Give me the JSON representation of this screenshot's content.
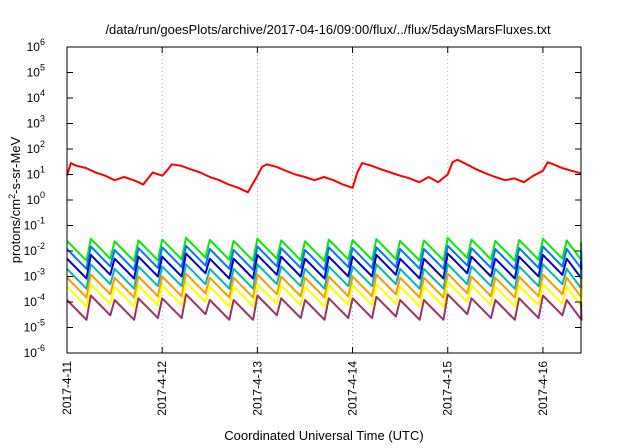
{
  "chart_data": {
    "type": "line",
    "title": "/data/run/goesPlots/archive/2017-04-16/09:00/flux/../flux/5daysMarsFluxes.txt",
    "xlabel": "Coordinated Universal Time (UTC)",
    "ylabel_parts": [
      "protons/cm",
      "2",
      "-s-sr-MeV"
    ],
    "yscale": "log",
    "ylim": [
      1e-06,
      1000000.0
    ],
    "y_ticks": [
      {
        "base": "10",
        "exp": "-6",
        "value": 1e-06
      },
      {
        "base": "10",
        "exp": "-5",
        "value": 1e-05
      },
      {
        "base": "10",
        "exp": "-4",
        "value": 0.0001
      },
      {
        "base": "10",
        "exp": "-3",
        "value": 0.001
      },
      {
        "base": "10",
        "exp": "-2",
        "value": 0.01
      },
      {
        "base": "10",
        "exp": "-1",
        "value": 0.1
      },
      {
        "base": "10",
        "exp": "0",
        "value": 1
      },
      {
        "base": "10",
        "exp": "1",
        "value": 10
      },
      {
        "base": "10",
        "exp": "2",
        "value": 100
      },
      {
        "base": "10",
        "exp": "3",
        "value": 1000
      },
      {
        "base": "10",
        "exp": "4",
        "value": 10000
      },
      {
        "base": "10",
        "exp": "5",
        "value": 100000
      },
      {
        "base": "10",
        "exp": "6",
        "value": 1000000
      }
    ],
    "x_ticks": [
      "2017-4-11",
      "2017-4-12",
      "2017-4-13",
      "2017-4-14",
      "2017-4-15",
      "2017-4-16"
    ],
    "xlim_days": [
      0,
      5.4
    ],
    "grid": true,
    "series": [
      {
        "color": "#ff0000",
        "x": [
          0,
          0.04,
          0.1,
          0.2,
          0.3,
          0.4,
          0.5,
          0.6,
          0.7,
          0.75,
          0.8,
          0.9,
          1.0,
          1.05,
          1.1,
          1.2,
          1.3,
          1.4,
          1.5,
          1.6,
          1.7,
          1.8,
          1.9,
          2.0,
          2.05,
          2.1,
          2.2,
          2.3,
          2.4,
          2.5,
          2.6,
          2.7,
          2.8,
          2.9,
          3.0,
          3.05,
          3.1,
          3.2,
          3.3,
          3.4,
          3.5,
          3.6,
          3.7,
          3.8,
          3.9,
          4.0,
          4.05,
          4.1,
          4.2,
          4.3,
          4.4,
          4.5,
          4.6,
          4.7,
          4.8,
          4.9,
          5.0,
          5.05,
          5.1,
          5.2,
          5.3,
          5.4
        ],
        "values": [
          9,
          28,
          22,
          18,
          12,
          9,
          6,
          8,
          6,
          5,
          4,
          12,
          9,
          14,
          25,
          22,
          16,
          12,
          8,
          6,
          4,
          3,
          2,
          9,
          20,
          25,
          20,
          14,
          10,
          8,
          6,
          8,
          6,
          4,
          3,
          12,
          28,
          22,
          16,
          12,
          9,
          7,
          5,
          8,
          5,
          10,
          30,
          38,
          25,
          16,
          11,
          8,
          6,
          7,
          5,
          9,
          14,
          30,
          26,
          18,
          14,
          11
        ]
      },
      {
        "color": "#00ee00",
        "x": [
          0,
          0.25,
          0.5,
          0.75,
          1.0,
          1.25,
          1.5,
          1.75,
          2.0,
          2.25,
          2.5,
          2.75,
          3.0,
          3.25,
          3.5,
          3.75,
          4.0,
          4.25,
          4.5,
          4.75,
          5.0,
          5.25,
          5.4
        ],
        "values": [
          0.025,
          0.03,
          0.024,
          0.026,
          0.028,
          0.033,
          0.027,
          0.025,
          0.03,
          0.026,
          0.024,
          0.028,
          0.027,
          0.029,
          0.025,
          0.026,
          0.032,
          0.028,
          0.025,
          0.027,
          0.03,
          0.026,
          0.022
        ]
      },
      {
        "color": "#0077ff",
        "x": [
          0,
          0.25,
          0.5,
          0.75,
          1.0,
          1.25,
          1.5,
          1.75,
          2.0,
          2.25,
          2.5,
          2.75,
          3.0,
          3.25,
          3.5,
          3.75,
          4.0,
          4.25,
          4.5,
          4.75,
          5.0,
          5.25,
          5.4
        ],
        "values": [
          0.012,
          0.015,
          0.011,
          0.013,
          0.014,
          0.016,
          0.012,
          0.011,
          0.015,
          0.013,
          0.011,
          0.014,
          0.013,
          0.014,
          0.012,
          0.012,
          0.016,
          0.013,
          0.012,
          0.013,
          0.015,
          0.012,
          0.01
        ]
      },
      {
        "color": "#0000cc",
        "x": [
          0,
          0.25,
          0.5,
          0.75,
          1.0,
          1.25,
          1.5,
          1.75,
          2.0,
          2.25,
          2.5,
          2.75,
          3.0,
          3.25,
          3.5,
          3.75,
          4.0,
          4.25,
          4.5,
          4.75,
          5.0,
          5.25,
          5.4
        ],
        "values": [
          0.005,
          0.007,
          0.005,
          0.006,
          0.006,
          0.008,
          0.005,
          0.005,
          0.007,
          0.006,
          0.005,
          0.006,
          0.006,
          0.007,
          0.005,
          0.005,
          0.008,
          0.006,
          0.005,
          0.006,
          0.007,
          0.005,
          0.004
        ]
      },
      {
        "color": "#00bbaa",
        "x": [
          0,
          0.25,
          0.5,
          0.75,
          1.0,
          1.25,
          1.5,
          1.75,
          2.0,
          2.25,
          2.5,
          2.75,
          3.0,
          3.25,
          3.5,
          3.75,
          4.0,
          4.25,
          4.5,
          4.75,
          5.0,
          5.25,
          5.4
        ],
        "values": [
          0.002,
          0.003,
          0.002,
          0.0025,
          0.0025,
          0.003,
          0.002,
          0.002,
          0.003,
          0.0025,
          0.002,
          0.0025,
          0.0025,
          0.003,
          0.002,
          0.002,
          0.003,
          0.0025,
          0.002,
          0.0025,
          0.003,
          0.002,
          0.0018
        ]
      },
      {
        "color": "#ff9900",
        "x": [
          0,
          0.25,
          0.5,
          0.75,
          1.0,
          1.25,
          1.5,
          1.75,
          2.0,
          2.25,
          2.5,
          2.75,
          3.0,
          3.25,
          3.5,
          3.75,
          4.0,
          4.25,
          4.5,
          4.75,
          5.0,
          5.25,
          5.4
        ],
        "values": [
          0.0009,
          0.0012,
          0.0009,
          0.001,
          0.001,
          0.0013,
          0.0009,
          0.0009,
          0.0012,
          0.001,
          0.0009,
          0.001,
          0.001,
          0.0012,
          0.0009,
          0.0009,
          0.0013,
          0.001,
          0.0009,
          0.001,
          0.0012,
          0.0009,
          0.0008
        ]
      },
      {
        "color": "#ffff00",
        "x": [
          0,
          0.25,
          0.5,
          0.75,
          1.0,
          1.25,
          1.5,
          1.75,
          2.0,
          2.25,
          2.5,
          2.75,
          3.0,
          3.25,
          3.5,
          3.75,
          4.0,
          4.25,
          4.5,
          4.75,
          5.0,
          5.25,
          5.4
        ],
        "values": [
          0.0004,
          0.0005,
          0.0004,
          0.00045,
          0.00045,
          0.0006,
          0.0004,
          0.0004,
          0.0005,
          0.00045,
          0.0004,
          0.00045,
          0.00045,
          0.0005,
          0.0004,
          0.0004,
          0.0006,
          0.00045,
          0.0004,
          0.00045,
          0.0005,
          0.0004,
          0.00035
        ]
      },
      {
        "color": "#993366",
        "x": [
          0,
          0.25,
          0.5,
          0.75,
          1.0,
          1.25,
          1.5,
          1.75,
          2.0,
          2.25,
          2.5,
          2.75,
          3.0,
          3.25,
          3.5,
          3.75,
          4.0,
          4.25,
          4.5,
          4.75,
          5.0,
          5.25,
          5.4
        ],
        "values": [
          0.00012,
          0.00018,
          0.00012,
          0.00014,
          0.00014,
          0.0002,
          0.00012,
          0.00012,
          0.00018,
          0.00014,
          0.00012,
          0.00014,
          0.00014,
          0.00016,
          0.00012,
          0.00012,
          0.0002,
          0.00014,
          0.00012,
          0.00014,
          0.00018,
          0.00012,
          0.0001
        ]
      }
    ]
  }
}
